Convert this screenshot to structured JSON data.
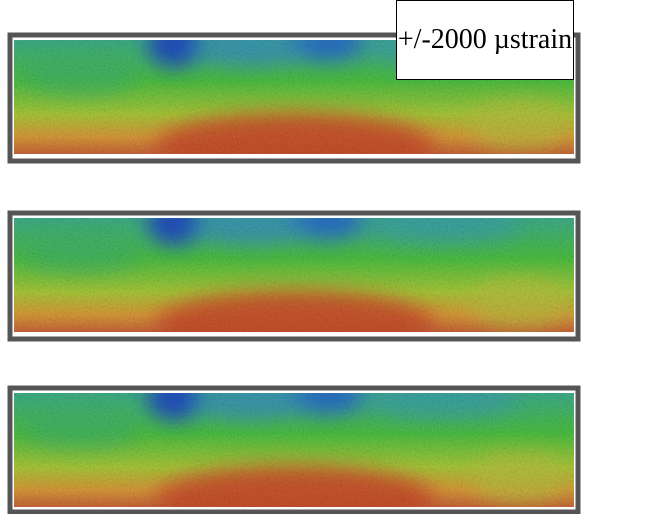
{
  "label": "+/-2000 µstrain"
}
